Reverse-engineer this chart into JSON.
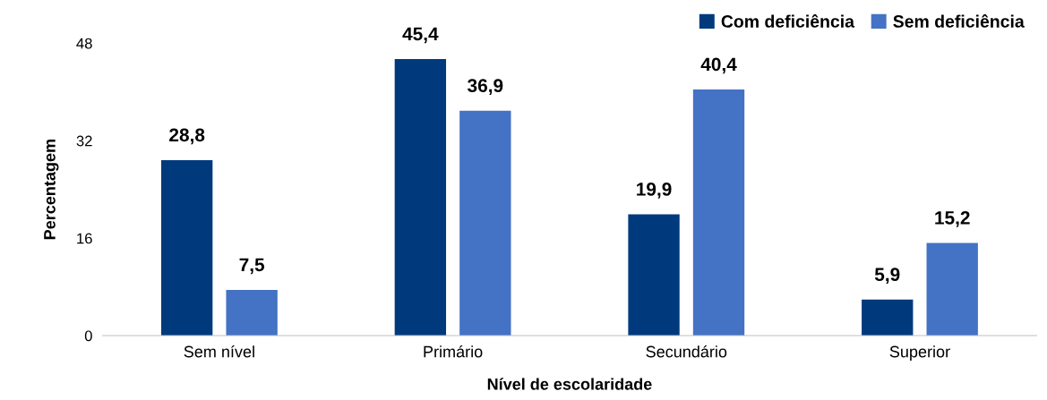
{
  "chart_data": {
    "type": "bar",
    "xlabel": "Nível de escolaridade",
    "ylabel": "Percentagem",
    "categories": [
      "Sem nível",
      "Primário",
      "Secundário",
      "Superior"
    ],
    "series": [
      {
        "name": "Com deficiência",
        "color": "#003a7d",
        "values": [
          28.8,
          45.4,
          19.9,
          5.9
        ],
        "value_labels": [
          "28,8",
          "45,4",
          "19,9",
          "5,9"
        ]
      },
      {
        "name": "Sem deficiência",
        "color": "#4472c4",
        "values": [
          7.5,
          36.9,
          40.4,
          15.2
        ],
        "value_labels": [
          "7,5",
          "36,9",
          "40,4",
          "15,2"
        ]
      }
    ],
    "ylim": [
      0,
      48
    ],
    "yticks": [
      0,
      16,
      32,
      48
    ],
    "grid": false,
    "legend": "top right"
  }
}
